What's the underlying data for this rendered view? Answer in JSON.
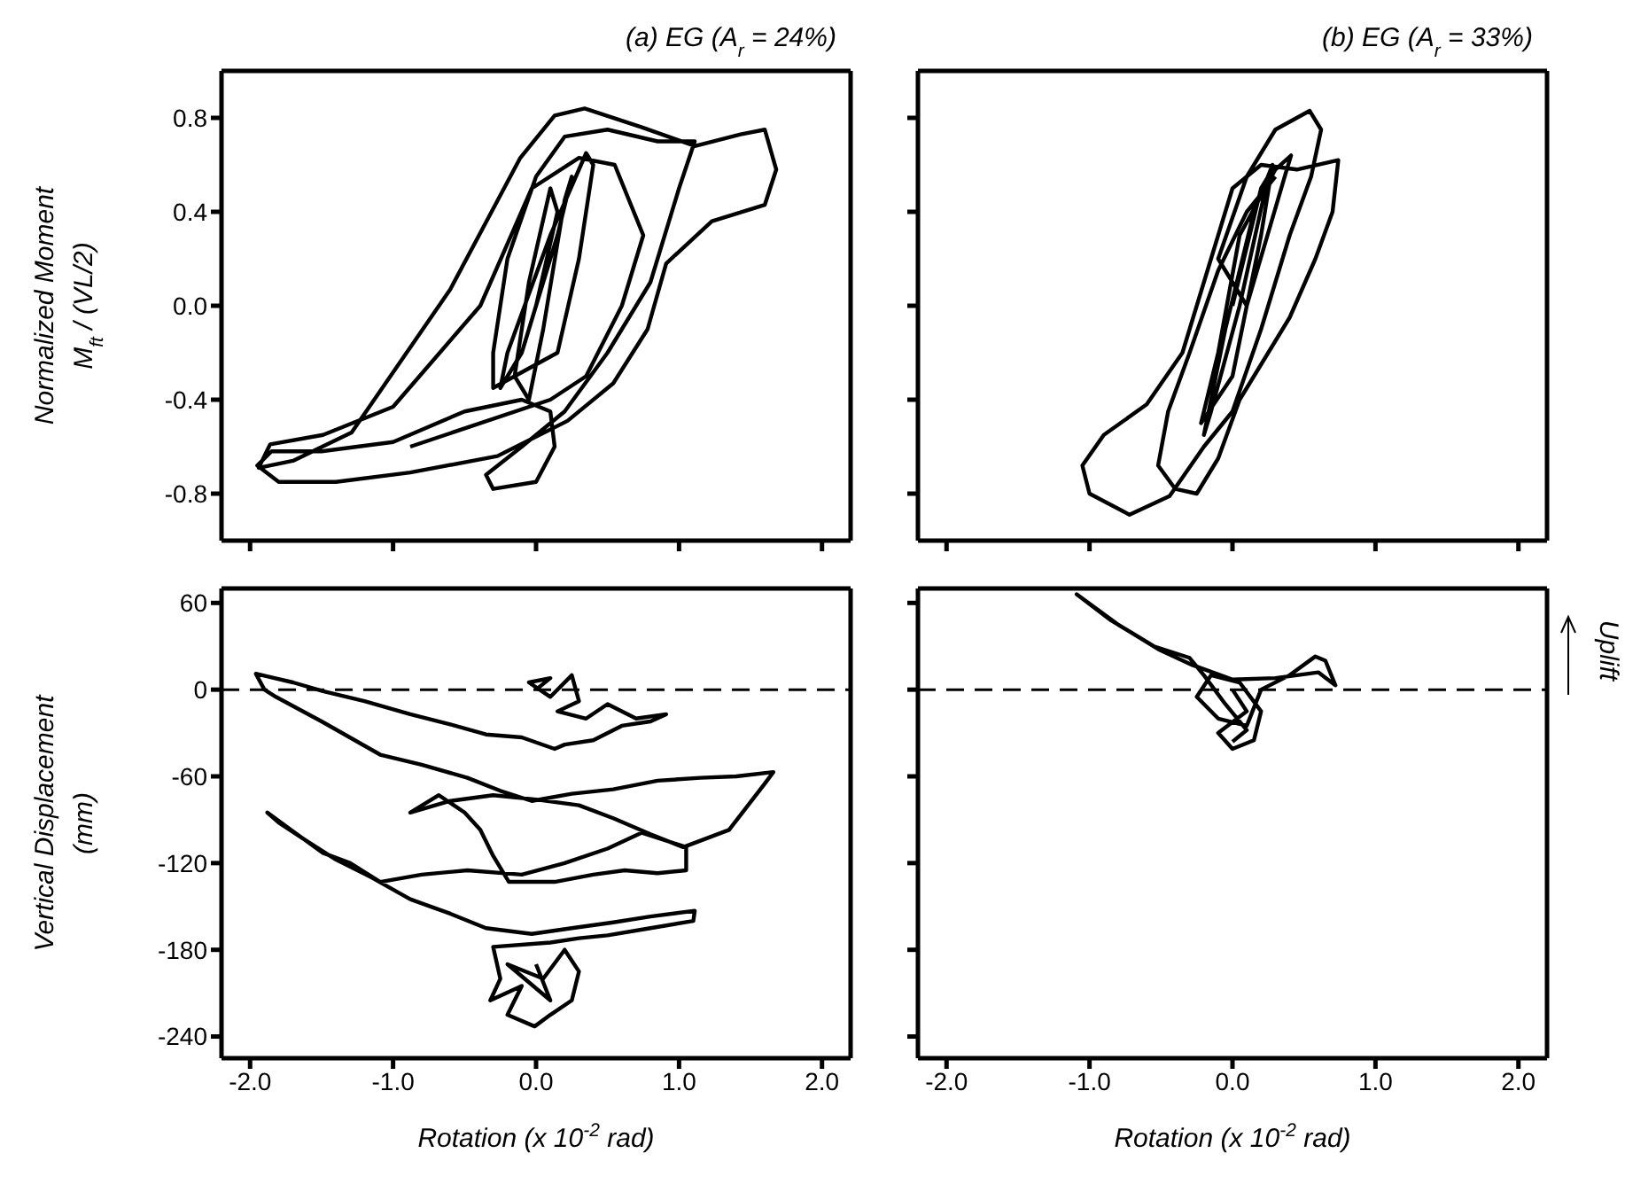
{
  "chart_data": [
    {
      "type": "line",
      "title": "(a) EG (A$_{r}$ = 24%)",
      "ylabel": "Normalized Moment\nM$_{ft}$ / (VL/2)",
      "xlim": [
        -2.2,
        2.2
      ],
      "xticks": [
        {
          "value": -2,
          "label": null
        },
        {
          "value": -1,
          "label": null
        },
        {
          "value": 0,
          "label": null
        },
        {
          "value": 1,
          "label": null
        },
        {
          "value": 2,
          "label": null
        }
      ],
      "ylim": [
        -1,
        1
      ],
      "yticks": [
        {
          "value": -0.8,
          "label": "-0.8"
        },
        {
          "value": -0.4,
          "label": "-0.4"
        },
        {
          "value": 0,
          "label": "0.0"
        },
        {
          "value": 0.4,
          "label": "0.4"
        },
        {
          "value": 0.8,
          "label": "0.8"
        }
      ],
      "tick_labels": "y",
      "marker": "none",
      "series": [
        {
          "color": "#000000",
          "x": [
            0,
            0.15,
            0.1,
            -0.05,
            -0.15,
            -0.05,
            0.05,
            0.2,
            0.25,
            0.15,
            -0.1,
            -0.25,
            -0.2,
            0.1,
            0.35,
            0.4,
            0.3,
            0.15,
            -0.3,
            -0.3,
            -0.2,
            0,
            0.2,
            0.5,
            0.85,
            1.11,
            1,
            0.8,
            0.5,
            0.2,
            -0.1,
            -0.35,
            -0.3,
            0,
            0.13,
            0.1,
            -0.1,
            -0.5,
            -1,
            -1.5,
            -1.85,
            -1.95,
            -1.8,
            -1.4,
            -0.88,
            -0.27,
            0.22,
            0.54,
            0.78,
            0.91,
            1.23,
            1.6,
            1.68,
            1.6,
            1.43,
            1.11,
            0.74,
            0.34,
            0.13,
            -0.11,
            -0.6,
            -1.29,
            -1.7,
            -1.94,
            -1.86,
            -1.49,
            -1,
            -0.39,
            -0.03,
            0.3,
            0.55,
            0.75,
            0.6,
            0.35,
            0.1,
            -0.88
          ],
          "values": [
            0,
            0.4,
            0.5,
            0.1,
            -0.3,
            -0.4,
            -0.1,
            0.45,
            0.55,
            0.3,
            -0.2,
            -0.35,
            -0.2,
            0.3,
            0.65,
            0.6,
            0.2,
            -0.2,
            -0.35,
            -0.2,
            0.2,
            0.55,
            0.72,
            0.75,
            0.7,
            0.7,
            0.5,
            0.1,
            -0.2,
            -0.45,
            -0.6,
            -0.72,
            -0.78,
            -0.75,
            -0.6,
            -0.45,
            -0.4,
            -0.45,
            -0.58,
            -0.62,
            -0.62,
            -0.68,
            -0.75,
            -0.75,
            -0.71,
            -0.64,
            -0.49,
            -0.33,
            -0.1,
            0.18,
            0.36,
            0.43,
            0.58,
            0.75,
            0.73,
            0.68,
            0.76,
            0.84,
            0.81,
            0.63,
            0.07,
            -0.54,
            -0.66,
            -0.69,
            -0.59,
            -0.55,
            -0.43,
            0,
            0.5,
            0.63,
            0.6,
            0.3,
            0,
            -0.3,
            -0.4,
            -0.6
          ]
        }
      ]
    },
    {
      "type": "line",
      "title": "(b) EG (A$_{r}$ = 33%)",
      "xlim": [
        -2.2,
        2.2
      ],
      "xticks": [
        {
          "value": -2,
          "label": null
        },
        {
          "value": -1,
          "label": null
        },
        {
          "value": 0,
          "label": null
        },
        {
          "value": 1,
          "label": null
        },
        {
          "value": 2,
          "label": null
        }
      ],
      "ylim": [
        -1,
        1
      ],
      "yticks": [
        {
          "value": -0.8,
          "label": null
        },
        {
          "value": -0.4,
          "label": null
        },
        {
          "value": 0,
          "label": null
        },
        {
          "value": 0.4,
          "label": null
        },
        {
          "value": 0.8,
          "label": null
        }
      ],
      "tick_labels": false,
      "marker": "none",
      "series": [
        {
          "color": "#000000",
          "x": [
            0,
            0.2,
            0.25,
            0.05,
            -0.15,
            -0.2,
            -0.05,
            0.15,
            0.28,
            0.2,
            0,
            -0.22,
            -0.1,
            0.05,
            0.3,
            0.41,
            0.37,
            0.1,
            -0.1,
            0.1,
            0.3,
            0.54,
            0.62,
            0.55,
            0.4,
            0.2,
            0,
            -0.2,
            -0.44,
            -0.72,
            -1,
            -1.05,
            -0.9,
            -0.6,
            -0.35,
            -0.15,
            0,
            0.2,
            0.45,
            0.74,
            0.7,
            0.58,
            0.4,
            0.25,
            0.05,
            -0.1,
            -0.25,
            -0.4,
            -0.52,
            -0.45,
            -0.3,
            -0.1,
            0.1,
            0.3
          ],
          "values": [
            0,
            0.5,
            0.55,
            0,
            -0.45,
            -0.55,
            -0.1,
            0.4,
            0.6,
            0.3,
            -0.3,
            -0.5,
            -0.2,
            0.3,
            0.58,
            0.64,
            0.56,
            0,
            0.2,
            0.55,
            0.75,
            0.83,
            0.75,
            0.55,
            0.3,
            -0.1,
            -0.45,
            -0.6,
            -0.81,
            -0.89,
            -0.8,
            -0.68,
            -0.55,
            -0.42,
            -0.2,
            0.2,
            0.5,
            0.6,
            0.58,
            0.62,
            0.4,
            0.2,
            -0.05,
            -0.2,
            -0.4,
            -0.65,
            -0.8,
            -0.78,
            -0.68,
            -0.45,
            -0.2,
            0.15,
            0.4,
            0.55
          ]
        }
      ]
    },
    {
      "type": "line",
      "xlabel": "Rotation (x 10$^{-2}$ rad)",
      "ylabel": "Vertical Displacement\n(mm)",
      "xlim": [
        -2.2,
        2.2
      ],
      "xticks": [
        {
          "value": -2,
          "label": "-2.0"
        },
        {
          "value": -1,
          "label": "-1.0"
        },
        {
          "value": 0,
          "label": "0.0"
        },
        {
          "value": 1,
          "label": "1.0"
        },
        {
          "value": 2,
          "label": "2.0"
        }
      ],
      "ylim": [
        -255,
        70
      ],
      "yticks": [
        -240,
        -180,
        -120,
        -60,
        0,
        60
      ],
      "marker": "none",
      "ref_lines": [
        {
          "axis": "y",
          "value": 0,
          "line_style": "dashed",
          "color": "#000000"
        }
      ],
      "series": [
        {
          "color": "#000000",
          "x": [
            0,
            0.1,
            -0.05,
            0.1,
            0.25,
            0.3,
            0.15,
            0.35,
            0.5,
            0.7,
            0.91,
            0.8,
            0.6,
            0.4,
            0.2,
            0.13,
            -0.1,
            -0.35,
            -0.6,
            -0.88,
            -1.2,
            -1.49,
            -1.7,
            -1.96,
            -1.9,
            -1.82,
            -1.5,
            -1.09,
            -0.8,
            -0.48,
            -0.25,
            -0.03,
            0.25,
            0.54,
            0.85,
            1.15,
            1.4,
            1.66,
            1.6,
            1.35,
            1.03,
            0.8,
            0.54,
            0.3,
            0,
            -0.3,
            -0.6,
            -0.88,
            -0.68,
            -0.5,
            -0.39,
            -0.3,
            -0.19,
            0.13,
            0.4,
            0.62,
            0.85,
            1.05,
            1.05,
            0.74,
            0.5,
            0.2,
            -0.1,
            -0.48,
            -0.8,
            -1.09,
            -1.3,
            -1.49,
            -1.7,
            -1.88,
            -1.8,
            -1.6,
            -1.41,
            -1.15,
            -0.88,
            -0.6,
            -0.35,
            -0.03,
            0.25,
            0.54,
            0.8,
            1.11,
            1.1,
            0.8,
            0.5,
            0.3,
            0.1,
            -0.3,
            -0.25,
            -0.32,
            -0.1,
            -0.2,
            -0.01,
            0.1,
            0.25,
            0.3,
            0.2,
            0.05,
            -0.2,
            0.1,
            0
          ],
          "values": [
            0,
            8,
            5,
            -5,
            10,
            -8,
            -15,
            -20,
            -10,
            -20,
            -17,
            -22,
            -25,
            -35,
            -38,
            -41,
            -33,
            -31,
            -24,
            -17,
            -8,
            -1,
            5,
            11,
            0,
            -5,
            -22,
            -45,
            -52,
            -61,
            -70,
            -77,
            -72,
            -69,
            -63,
            -61,
            -60,
            -57,
            -65,
            -97,
            -109,
            -100,
            -89,
            -80,
            -76,
            -73,
            -77,
            -85,
            -73,
            -85,
            -97,
            -115,
            -133,
            -133,
            -128,
            -125,
            -127,
            -125,
            -109,
            -99,
            -110,
            -120,
            -128,
            -125,
            -128,
            -133,
            -120,
            -113,
            -98,
            -85,
            -92,
            -105,
            -117,
            -130,
            -145,
            -155,
            -165,
            -169,
            -165,
            -161,
            -157,
            -153,
            -160,
            -165,
            -170,
            -172,
            -175,
            -178,
            -200,
            -215,
            -205,
            -225,
            -233,
            -225,
            -215,
            -195,
            -180,
            -200,
            -190,
            -215,
            -190
          ]
        }
      ]
    },
    {
      "type": "line",
      "xlabel": "Rotation (x 10$^{-2}$ rad)",
      "xlim": [
        -2.2,
        2.2
      ],
      "xticks": [
        {
          "value": -2,
          "label": "-2.0"
        },
        {
          "value": -1,
          "label": "-1.0"
        },
        {
          "value": 0,
          "label": "0.0"
        },
        {
          "value": 1,
          "label": "1.0"
        },
        {
          "value": 2,
          "label": "2.0"
        }
      ],
      "ylim": [
        -255,
        70
      ],
      "yticks": [
        {
          "value": -240,
          "label": null
        },
        {
          "value": -180,
          "label": null
        },
        {
          "value": -120,
          "label": null
        },
        {
          "value": -60,
          "label": null
        },
        {
          "value": 0,
          "label": null
        },
        {
          "value": 60,
          "label": null
        }
      ],
      "tick_labels": "x",
      "marker": "none",
      "ref_lines": [
        {
          "axis": "y",
          "value": 0,
          "line_style": "dashed",
          "color": "#000000"
        }
      ],
      "annotations": [
        "Uplift"
      ],
      "series": [
        {
          "color": "#000000",
          "x": [
            0,
            0.1,
            -0.1,
            0,
            0.15,
            0.2,
            0.05,
            -0.15,
            -0.25,
            -0.1,
            0.1,
            0.2,
            0.4,
            0.58,
            0.65,
            0.72,
            0.6,
            0.3,
            0,
            -0.28,
            -0.52,
            -0.8,
            -1.09,
            -0.85,
            -0.55,
            -0.3,
            -0.2,
            -0.05,
            0.1,
            0
          ],
          "values": [
            0,
            -15,
            -30,
            -41,
            -35,
            -15,
            5,
            10,
            -5,
            -20,
            -25,
            0,
            10,
            23,
            20,
            3,
            12,
            8,
            7,
            17,
            28,
            45,
            66,
            48,
            30,
            22,
            10,
            -10,
            -28,
            -36
          ]
        }
      ]
    }
  ]
}
